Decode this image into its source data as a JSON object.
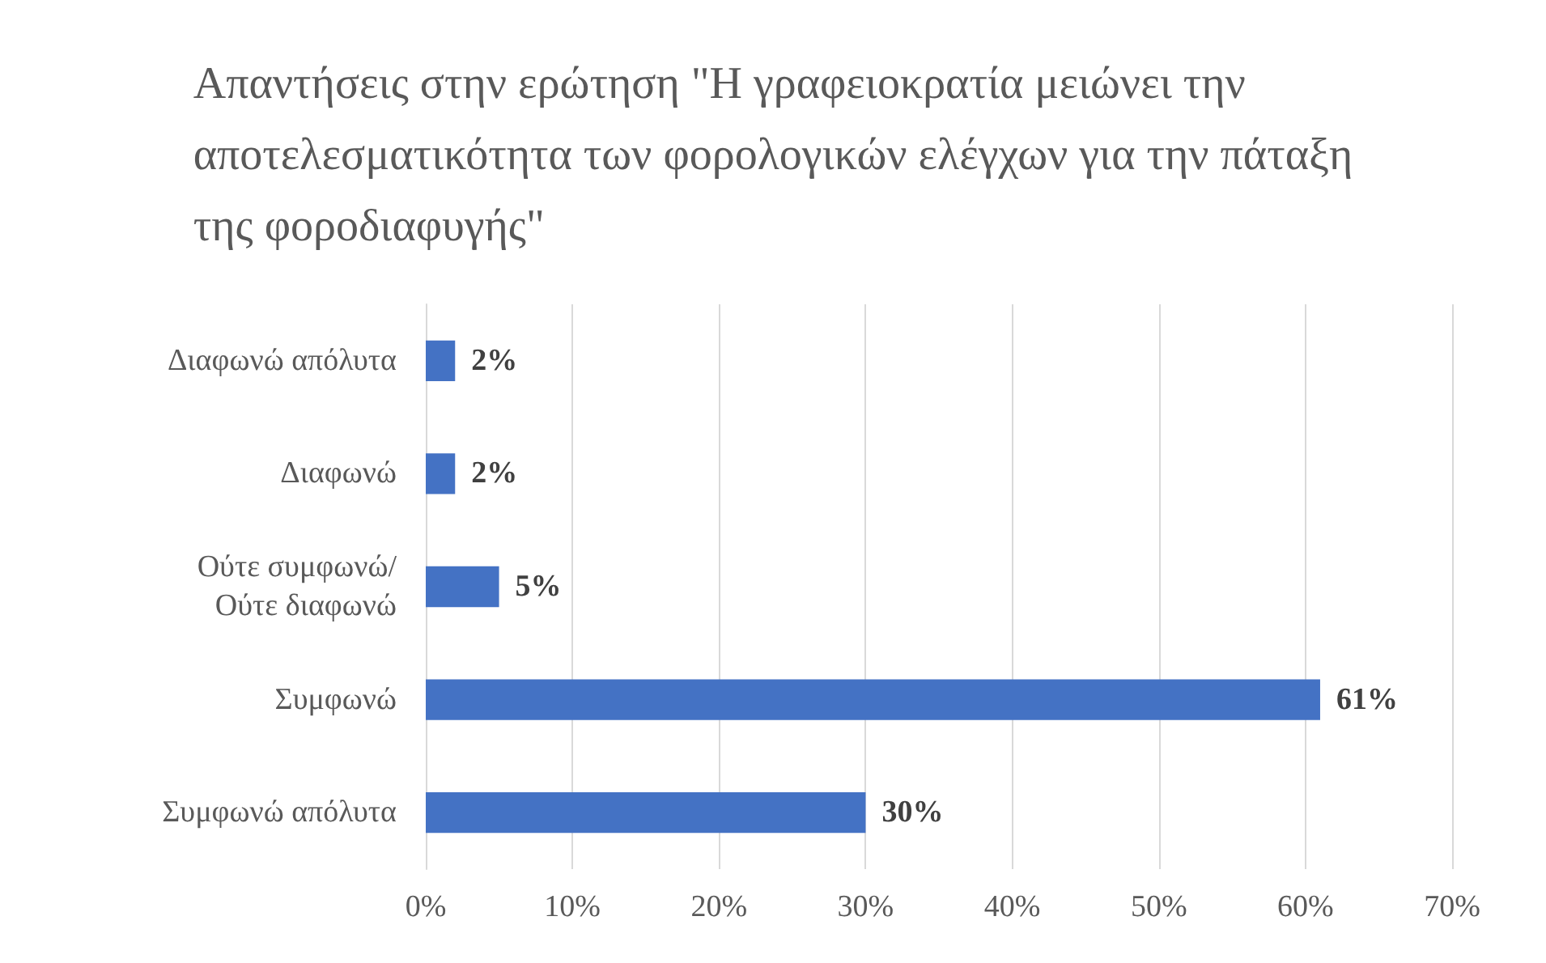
{
  "chart_data": {
    "type": "bar",
    "orientation": "horizontal",
    "title": "Απαντήσεις στην ερώτηση \"Η γραφειοκρατία μειώνει την αποτελεσματικότητα των φορολογικών ελέγχων για την πάταξη της φοροδιαφυγής\"",
    "categories": [
      "Διαφωνώ απόλυτα",
      "Διαφωνώ",
      "Ούτε συμφωνώ/\nΟύτε διαφωνώ",
      "Συμφωνώ",
      "Συμφωνώ απόλυτα"
    ],
    "values": [
      2,
      2,
      5,
      61,
      30
    ],
    "value_labels": [
      "2%",
      "2%",
      "5%",
      "61%",
      "30%"
    ],
    "color": "#4472c4",
    "xlim": [
      0,
      70
    ],
    "xticks": [
      {
        "value": 0,
        "label": "0%"
      },
      {
        "value": 10,
        "label": "10%"
      },
      {
        "value": 20,
        "label": "20%"
      },
      {
        "value": 30,
        "label": "30%"
      },
      {
        "value": 40,
        "label": "40%"
      },
      {
        "value": 50,
        "label": "50%"
      },
      {
        "value": 60,
        "label": "60%"
      },
      {
        "value": 70,
        "label": "70%"
      }
    ],
    "grid": "x"
  }
}
